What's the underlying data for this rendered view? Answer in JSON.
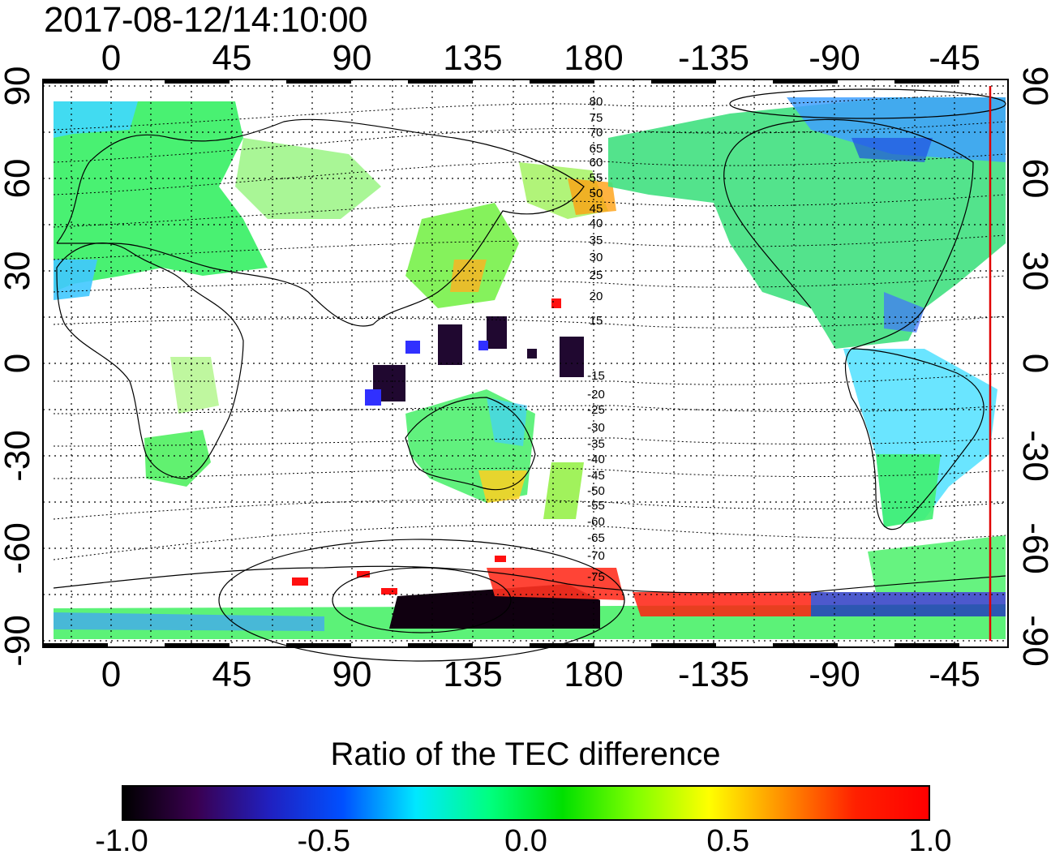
{
  "header": {
    "timestamp": "2017-08-12/14:10:00"
  },
  "map": {
    "top_lon_labels": [
      "0",
      "45",
      "90",
      "135",
      "180",
      "-135",
      "-90",
      "-45"
    ],
    "bottom_lon_labels": [
      "0",
      "45",
      "90",
      "135",
      "180",
      "-135",
      "-90",
      "-45"
    ],
    "left_lat_labels": [
      "90",
      "60",
      "30",
      "0",
      "-30",
      "-60",
      "-90"
    ],
    "right_lat_labels": [
      "90",
      "60",
      "30",
      "0",
      "-30",
      "-60",
      "-90"
    ],
    "magnetic_latitude_labels": [
      "80",
      "75",
      "70",
      "65",
      "60",
      "55",
      "50",
      "45",
      "40",
      "35",
      "30",
      "25",
      "20",
      "15",
      "-15",
      "-20",
      "-25",
      "-30",
      "-35",
      "-40",
      "-45",
      "-50",
      "-55",
      "-60",
      "-65",
      "-70",
      "-75"
    ],
    "terminator_color": "#e00000"
  },
  "colorbar": {
    "title": "Ratio of the TEC difference",
    "tick_labels": [
      "-1.0",
      "-0.5",
      "0.0",
      "0.5",
      "1.0"
    ],
    "min": -1.0,
    "max": 1.0,
    "stops": [
      "#000000",
      "#3a0050",
      "#2020c0",
      "#0050ff",
      "#00e8ff",
      "#00ff80",
      "#00e000",
      "#80ff00",
      "#ffff00",
      "#ff9000",
      "#ff2000",
      "#ff0000"
    ]
  }
}
